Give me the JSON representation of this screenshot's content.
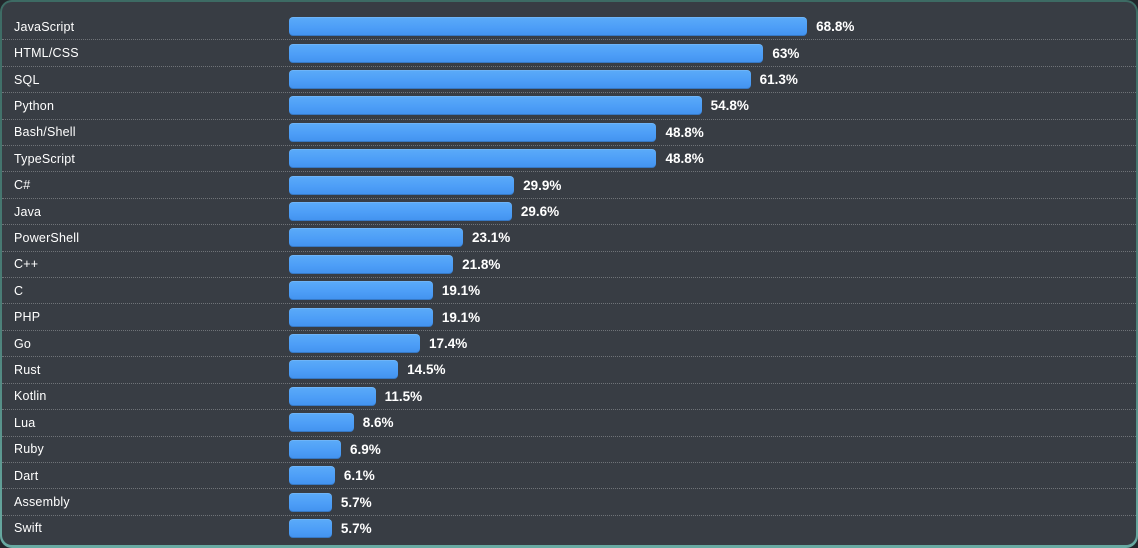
{
  "chart_data": {
    "type": "bar",
    "orientation": "horizontal",
    "title": "",
    "xlabel": "",
    "ylabel": "",
    "xlim": [
      0,
      100
    ],
    "legend": "none",
    "grid": "dotted-row-separators",
    "categories": [
      "JavaScript",
      "HTML/CSS",
      "SQL",
      "Python",
      "Bash/Shell",
      "TypeScript",
      "C#",
      "Java",
      "PowerShell",
      "C++",
      "C",
      "PHP",
      "Go",
      "Rust",
      "Kotlin",
      "Lua",
      "Ruby",
      "Dart",
      "Assembly",
      "Swift"
    ],
    "values": [
      68.8,
      63,
      61.3,
      54.8,
      48.8,
      48.8,
      29.9,
      29.6,
      23.1,
      21.8,
      19.1,
      19.1,
      17.4,
      14.5,
      11.5,
      8.6,
      6.9,
      6.1,
      5.7,
      5.7
    ],
    "value_labels": [
      "68.8%",
      "63%",
      "61.3%",
      "54.8%",
      "48.8%",
      "48.8%",
      "29.9%",
      "29.6%",
      "23.1%",
      "21.8%",
      "19.1%",
      "19.1%",
      "17.4%",
      "14.5%",
      "11.5%",
      "8.6%",
      "6.9%",
      "6.1%",
      "5.7%",
      "5.7%"
    ]
  },
  "colors": {
    "panel_background": "#383d44",
    "frame_border_top": "#3d6b64",
    "frame_border_bottom": "#68aaa2",
    "bar_fill": "#4d9ef7",
    "label_text": "#ffffff",
    "separator": "rgba(255,255,255,0.28)"
  }
}
